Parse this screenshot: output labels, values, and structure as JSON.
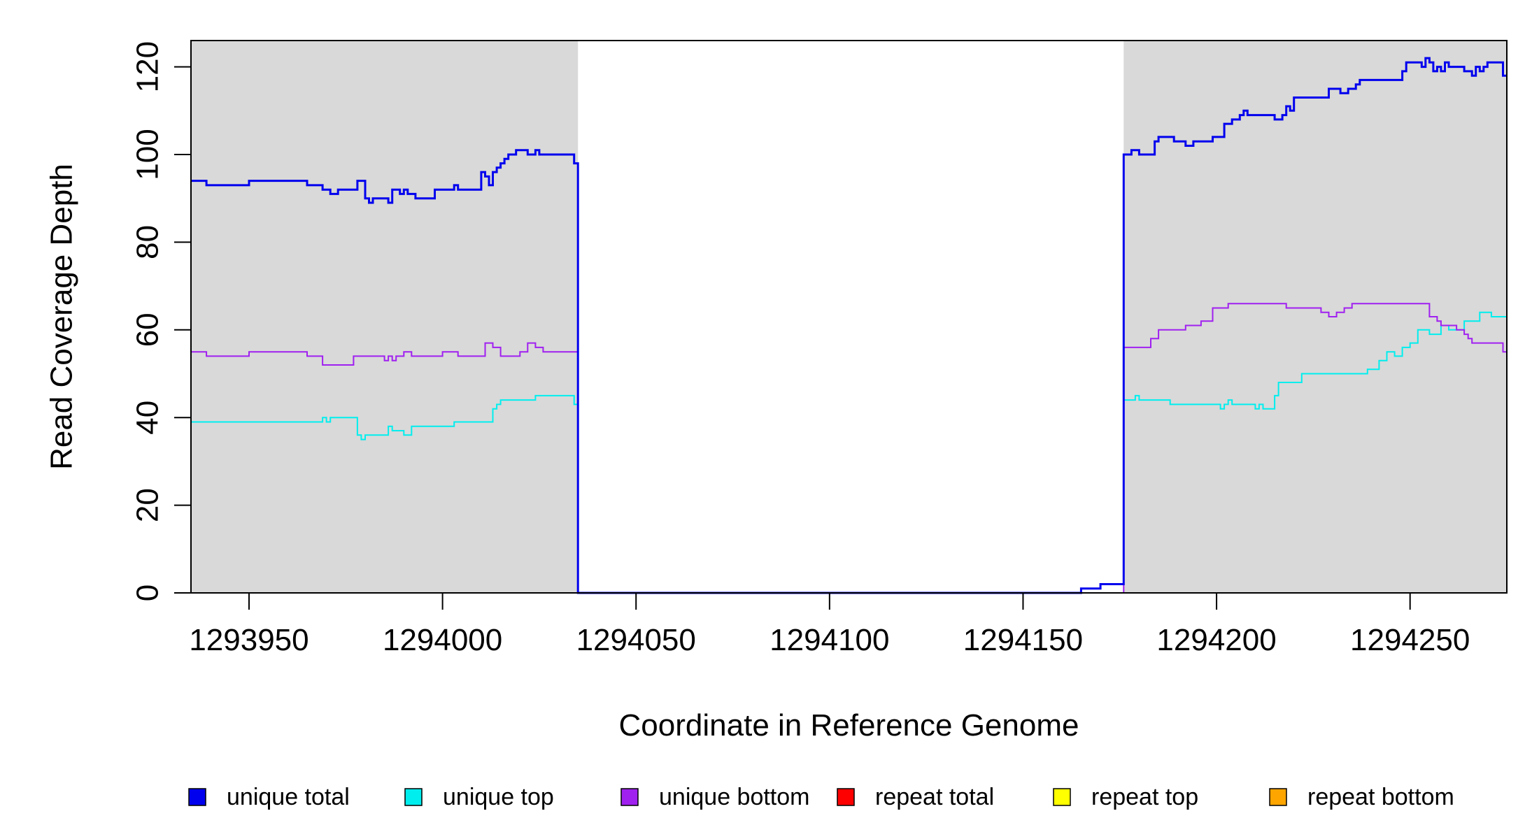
{
  "chart_data": {
    "type": "line",
    "title": "",
    "xlabel": "Coordinate in Reference Genome",
    "ylabel": "Read Coverage Depth",
    "xlim": [
      1293935,
      1294275
    ],
    "ylim": [
      0,
      126
    ],
    "x_ticks": [
      1293950,
      1294000,
      1294050,
      1294100,
      1294150,
      1294200,
      1294250
    ],
    "x_tick_labels": [
      "1293950",
      "1294000",
      "1294050",
      "1294100",
      "1294150",
      "1294200",
      "1294250"
    ],
    "y_ticks": [
      0,
      20,
      40,
      60,
      80,
      100,
      120
    ],
    "y_tick_labels": [
      "0",
      "20",
      "40",
      "60",
      "80",
      "100",
      "120"
    ],
    "shaded_regions": [
      [
        1293935,
        1294035
      ],
      [
        1294176,
        1294275
      ]
    ],
    "shade_color": "#d9d9d9",
    "legend_position": "bottom",
    "series": [
      {
        "name": "unique total",
        "color": "#0000ee",
        "width": 3,
        "x": [
          1293935,
          1293939,
          1293950,
          1293965,
          1293969,
          1293971,
          1293973,
          1293978,
          1293980,
          1293981,
          1293982,
          1293986,
          1293987,
          1293989,
          1293990,
          1293991,
          1293993,
          1293998,
          1294003,
          1294004,
          1294010,
          1294011,
          1294012,
          1294013,
          1294014,
          1294015,
          1294016,
          1294017,
          1294019,
          1294022,
          1294024,
          1294025,
          1294026,
          1294034,
          1294035,
          1294036,
          1294160,
          1294165,
          1294170,
          1294175,
          1294176,
          1294177,
          1294178,
          1294180,
          1294184,
          1294185,
          1294189,
          1294192,
          1294193,
          1294194,
          1294199,
          1294202,
          1294204,
          1294206,
          1294207,
          1294208,
          1294215,
          1294217,
          1294218,
          1294219,
          1294220,
          1294229,
          1294232,
          1294234,
          1294236,
          1294237,
          1294248,
          1294249,
          1294253,
          1294254,
          1294255,
          1294256,
          1294257,
          1294258,
          1294259,
          1294260,
          1294264,
          1294266,
          1294267,
          1294268,
          1294269,
          1294270,
          1294271,
          1294274,
          1294275
        ],
        "y": [
          94,
          93,
          94,
          93,
          92,
          91,
          92,
          94,
          90,
          89,
          90,
          89,
          92,
          91,
          92,
          91,
          90,
          92,
          93,
          92,
          96,
          95,
          93,
          96,
          97,
          98,
          99,
          100,
          101,
          100,
          101,
          100,
          100,
          98,
          0,
          0,
          0,
          1,
          2,
          2,
          100,
          100,
          101,
          100,
          103,
          104,
          103,
          102,
          102,
          103,
          104,
          107,
          108,
          109,
          110,
          109,
          108,
          109,
          111,
          110,
          113,
          115,
          114,
          115,
          116,
          117,
          119,
          121,
          120,
          122,
          121,
          119,
          120,
          119,
          121,
          120,
          119,
          118,
          120,
          119,
          120,
          121,
          121,
          118,
          118
        ]
      },
      {
        "name": "unique top",
        "color": "#00eeee",
        "width": 2,
        "x": [
          1293935,
          1293969,
          1293970,
          1293971,
          1293978,
          1293979,
          1293980,
          1293981,
          1293986,
          1293987,
          1293990,
          1293992,
          1294003,
          1294013,
          1294014,
          1294015,
          1294016,
          1294024,
          1294034,
          1294035,
          1294036,
          1294160,
          1294165,
          1294170,
          1294175,
          1294176,
          1294178,
          1294179,
          1294180,
          1294185,
          1294188,
          1294201,
          1294202,
          1294203,
          1294204,
          1294210,
          1294211,
          1294212,
          1294213,
          1294215,
          1294216,
          1294222,
          1294239,
          1294242,
          1294244,
          1294246,
          1294248,
          1294250,
          1294252,
          1294255,
          1294258,
          1294260,
          1294262,
          1294264,
          1294266,
          1294268,
          1294269,
          1294270,
          1294271,
          1294274,
          1294275
        ],
        "y": [
          39,
          40,
          39,
          40,
          36,
          35,
          36,
          36,
          38,
          37,
          36,
          38,
          39,
          42,
          43,
          44,
          44,
          45,
          43,
          0,
          0,
          0,
          1,
          2,
          2,
          44,
          44,
          45,
          44,
          44,
          43,
          42,
          43,
          44,
          43,
          42,
          43,
          42,
          42,
          45,
          48,
          50,
          51,
          53,
          55,
          54,
          56,
          57,
          60,
          59,
          61,
          60,
          60,
          62,
          62,
          64,
          64,
          64,
          63,
          63,
          63
        ]
      },
      {
        "name": "unique bottom",
        "color": "#a020f0",
        "width": 2,
        "x": [
          1293935,
          1293939,
          1293950,
          1293965,
          1293969,
          1293977,
          1293985,
          1293986,
          1293987,
          1293988,
          1293990,
          1293992,
          1294000,
          1294004,
          1294011,
          1294013,
          1294015,
          1294020,
          1294022,
          1294023,
          1294024,
          1294026,
          1294035,
          1294036,
          1294176,
          1294182,
          1294183,
          1294185,
          1294190,
          1294191,
          1294192,
          1294196,
          1294199,
          1294203,
          1294206,
          1294209,
          1294215,
          1294218,
          1294226,
          1294227,
          1294228,
          1294229,
          1294231,
          1294233,
          1294234,
          1294235,
          1294237,
          1294244,
          1294250,
          1294252,
          1294255,
          1294257,
          1294258,
          1294259,
          1294262,
          1294263,
          1294264,
          1294265,
          1294266,
          1294270,
          1294271,
          1294274,
          1294275
        ],
        "y": [
          55,
          54,
          55,
          54,
          52,
          54,
          53,
          54,
          53,
          54,
          55,
          54,
          55,
          54,
          57,
          56,
          54,
          55,
          57,
          57,
          56,
          55,
          0,
          0,
          56,
          56,
          58,
          60,
          60,
          60,
          61,
          62,
          65,
          66,
          66,
          66,
          66,
          65,
          65,
          64,
          64,
          63,
          64,
          65,
          65,
          66,
          66,
          66,
          66,
          66,
          63,
          62,
          61,
          61,
          60,
          60,
          59,
          58,
          57,
          57,
          57,
          55,
          55
        ]
      },
      {
        "name": "repeat total",
        "color": "#ff0000",
        "width": 2,
        "x": [
          1293935,
          1294275
        ],
        "y": [
          0,
          0
        ]
      },
      {
        "name": "repeat top",
        "color": "#ffff00",
        "width": 2,
        "x": [
          1293935,
          1294275
        ],
        "y": [
          0,
          0
        ]
      },
      {
        "name": "repeat bottom",
        "color": "#ffa500",
        "width": 2,
        "x": [
          1293935,
          1294275
        ],
        "y": [
          0,
          0
        ]
      }
    ]
  }
}
